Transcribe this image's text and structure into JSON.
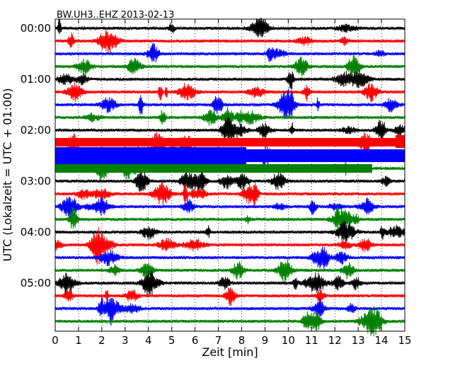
{
  "chart_data": {
    "type": "line",
    "title": "BW.UH3..EHZ 2013-02-13",
    "xlabel": "Zeit  [min]",
    "ylabel": "UTC (Lokalzeit = UTC + 01:00)",
    "xlim": [
      0,
      15
    ],
    "x_ticks": [
      "0",
      "1",
      "2",
      "3",
      "4",
      "5",
      "6",
      "7",
      "8",
      "9",
      "10",
      "11",
      "12",
      "13",
      "14",
      "15"
    ],
    "y_tick_labels": [
      "00:00",
      "01:00",
      "02:00",
      "03:00",
      "04:00",
      "05:00"
    ],
    "rows_per_hour": 4,
    "minutes_per_row": 15,
    "grid": "vertical dotted lines at each minute",
    "series_colors": [
      "#000000",
      "#ff0000",
      "#0000ff",
      "#008000"
    ],
    "rows": [
      {
        "start": "00:00",
        "color": "#000000"
      },
      {
        "start": "00:15",
        "color": "#ff0000"
      },
      {
        "start": "00:30",
        "color": "#0000ff"
      },
      {
        "start": "00:45",
        "color": "#008000"
      },
      {
        "start": "01:00",
        "color": "#000000"
      },
      {
        "start": "01:15",
        "color": "#ff0000"
      },
      {
        "start": "01:30",
        "color": "#0000ff"
      },
      {
        "start": "01:45",
        "color": "#008000"
      },
      {
        "start": "02:00",
        "color": "#000000"
      },
      {
        "start": "02:15",
        "color": "#ff0000"
      },
      {
        "start": "02:30",
        "color": "#0000ff"
      },
      {
        "start": "02:45",
        "color": "#008000"
      },
      {
        "start": "03:00",
        "color": "#000000"
      },
      {
        "start": "03:15",
        "color": "#ff0000"
      },
      {
        "start": "03:30",
        "color": "#0000ff"
      },
      {
        "start": "03:45",
        "color": "#008000"
      },
      {
        "start": "04:00",
        "color": "#000000"
      },
      {
        "start": "04:15",
        "color": "#ff0000"
      },
      {
        "start": "04:30",
        "color": "#0000ff"
      },
      {
        "start": "04:45",
        "color": "#008000"
      },
      {
        "start": "05:00",
        "color": "#000000"
      },
      {
        "start": "05:15",
        "color": "#ff0000"
      },
      {
        "start": "05:30",
        "color": "#0000ff"
      },
      {
        "start": "05:45",
        "color": "#008000"
      }
    ]
  }
}
